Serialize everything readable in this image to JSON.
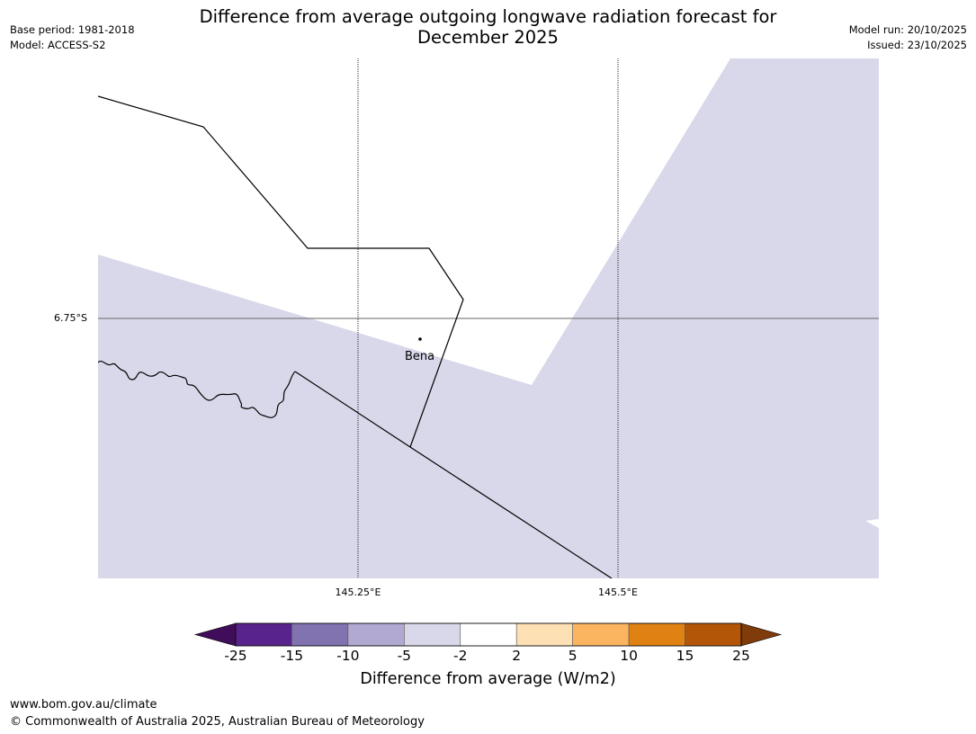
{
  "header": {
    "title_line1": "Difference from average outgoing longwave radiation forecast for",
    "title_line2": "December 2025",
    "base_period": "Base period: 1981-2018",
    "model": "Model: ACCESS-S2",
    "model_run": "Model run: 20/10/2025",
    "issued": "Issued: 23/10/2025"
  },
  "map": {
    "place_label": "Bena",
    "lat_label": "6.75°S",
    "lon_labels": [
      "145.25°E",
      "145.5°E"
    ],
    "fill_color": "#d8d8ea",
    "category_shown": "-5 to -2"
  },
  "colorbar": {
    "title": "Difference from average (W/m2)",
    "ticks": [
      "-25",
      "-15",
      "-10",
      "-5",
      "-2",
      "2",
      "5",
      "10",
      "15",
      "25"
    ],
    "colors": [
      "#3f0d5a",
      "#58238c",
      "#8172b0",
      "#b1a9d1",
      "#d8d8ea",
      "#ffffff",
      "#fde0b4",
      "#fbb45f",
      "#e08213",
      "#b45608",
      "#7f3b09"
    ]
  },
  "footer": {
    "url": "www.bom.gov.au/climate",
    "copyright": "© Commonwealth of Australia 2025, Australian Bureau of Meteorology"
  }
}
